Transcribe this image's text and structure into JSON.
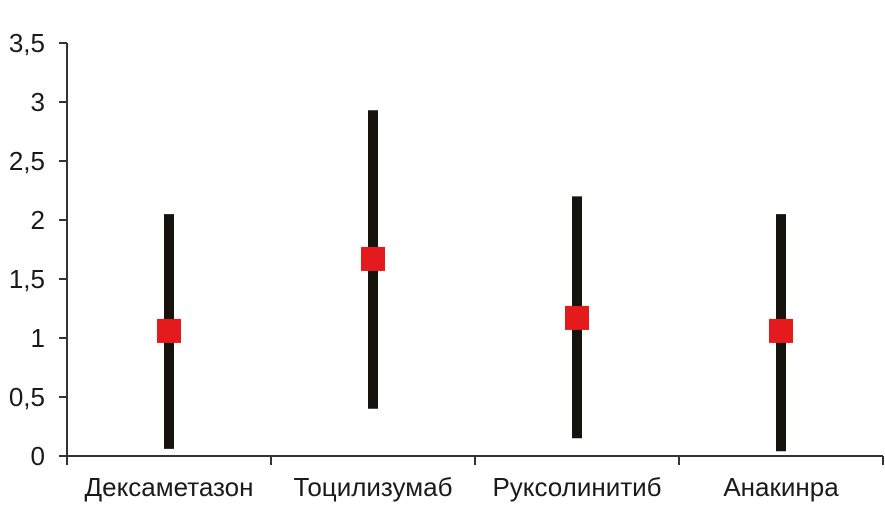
{
  "chart_data": {
    "type": "scatter",
    "title": "",
    "xlabel": "",
    "ylabel": "",
    "categories": [
      "Дексаметазон",
      "Тоцилизумаб",
      "Руксолинитиб",
      "Анакинра"
    ],
    "series": [
      {
        "values": [
          1.06,
          1.67,
          1.17,
          1.06
        ],
        "lower": [
          0.06,
          0.4,
          0.15,
          0.04
        ],
        "upper": [
          2.05,
          2.93,
          2.2,
          2.05
        ]
      }
    ],
    "ylim": [
      0,
      3.5
    ],
    "yticks": [
      0,
      0.5,
      1,
      1.5,
      2,
      2.5,
      3,
      3.5
    ],
    "ytick_labels": [
      "0",
      "0,5",
      "1",
      "1,5",
      "2",
      "2,5",
      "3",
      "3,5"
    ],
    "grid": false,
    "legend": "none",
    "colors": {
      "marker": "#e41a1c",
      "bar": "#16130e",
      "axis": "#333333"
    }
  }
}
